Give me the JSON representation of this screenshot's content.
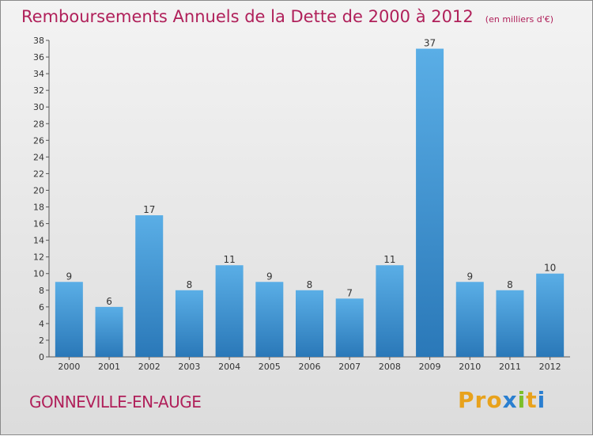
{
  "chart_data": {
    "type": "bar",
    "title": "Remboursements Annuels de la Dette de 2000 à 2012",
    "subtitle": "(en milliers d'€)",
    "categories": [
      "2000",
      "2001",
      "2002",
      "2003",
      "2004",
      "2005",
      "2006",
      "2007",
      "2008",
      "2009",
      "2010",
      "2011",
      "2012"
    ],
    "values": [
      9,
      6,
      17,
      8,
      11,
      9,
      8,
      7,
      11,
      37,
      9,
      8,
      10
    ],
    "ylim": [
      0,
      38
    ],
    "yticks": [
      0,
      2,
      4,
      6,
      8,
      10,
      12,
      14,
      16,
      18,
      20,
      22,
      24,
      26,
      28,
      30,
      32,
      34,
      36,
      38
    ],
    "grid": false,
    "bar_color": "#4a9fdc",
    "bar_color_dark": "#2a78b8"
  },
  "footer": {
    "commune": "GONNEVILLE-EN-AUGE",
    "logo_text": "Proxiti"
  },
  "colors": {
    "title": "#b0205a",
    "logo": [
      "#e8a21c",
      "#e8a21c",
      "#e8a21c",
      "#2a7fd0",
      "#7bbf2a",
      "#e8a21c",
      "#2a7fd0"
    ]
  }
}
